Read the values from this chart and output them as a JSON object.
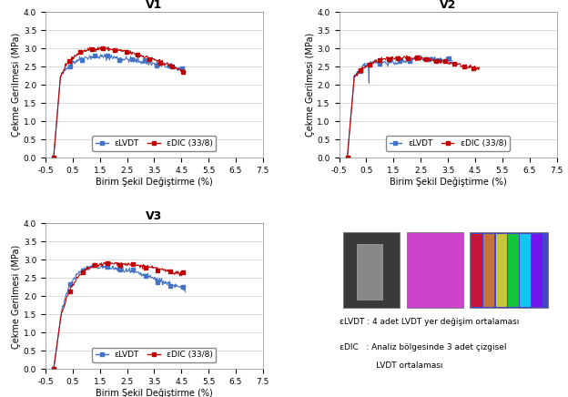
{
  "title_v1": "V1",
  "title_v2": "V2",
  "title_v3": "V3",
  "xlabel": "Birim Şekil Değiştirme (%)",
  "ylabel": "Çekme Gerilmesi (MPa)",
  "xlim": [
    -0.5,
    7.5
  ],
  "ylim": [
    0.0,
    4.0
  ],
  "xticks": [
    -0.5,
    0.5,
    1.5,
    2.5,
    3.5,
    4.5,
    5.5,
    6.5,
    7.5
  ],
  "yticks": [
    0.0,
    0.5,
    1.0,
    1.5,
    2.0,
    2.5,
    3.0,
    3.5,
    4.0
  ],
  "legend_lvdt": "εLVDT",
  "legend_edic": "εDIC (33/8)",
  "color_lvdt": "#4472C4",
  "color_edic": "#C00000",
  "note_line1": "εLVDT : 4 adet LVDT yer değişim ortalaması",
  "note_line2": "εDIC   : Analiz bölgesinde 3 adet çizgisel",
  "note_line3": "              LVDT ortalaması",
  "bg_color": "#FFFFFF",
  "grid_color": "#CCCCCC"
}
